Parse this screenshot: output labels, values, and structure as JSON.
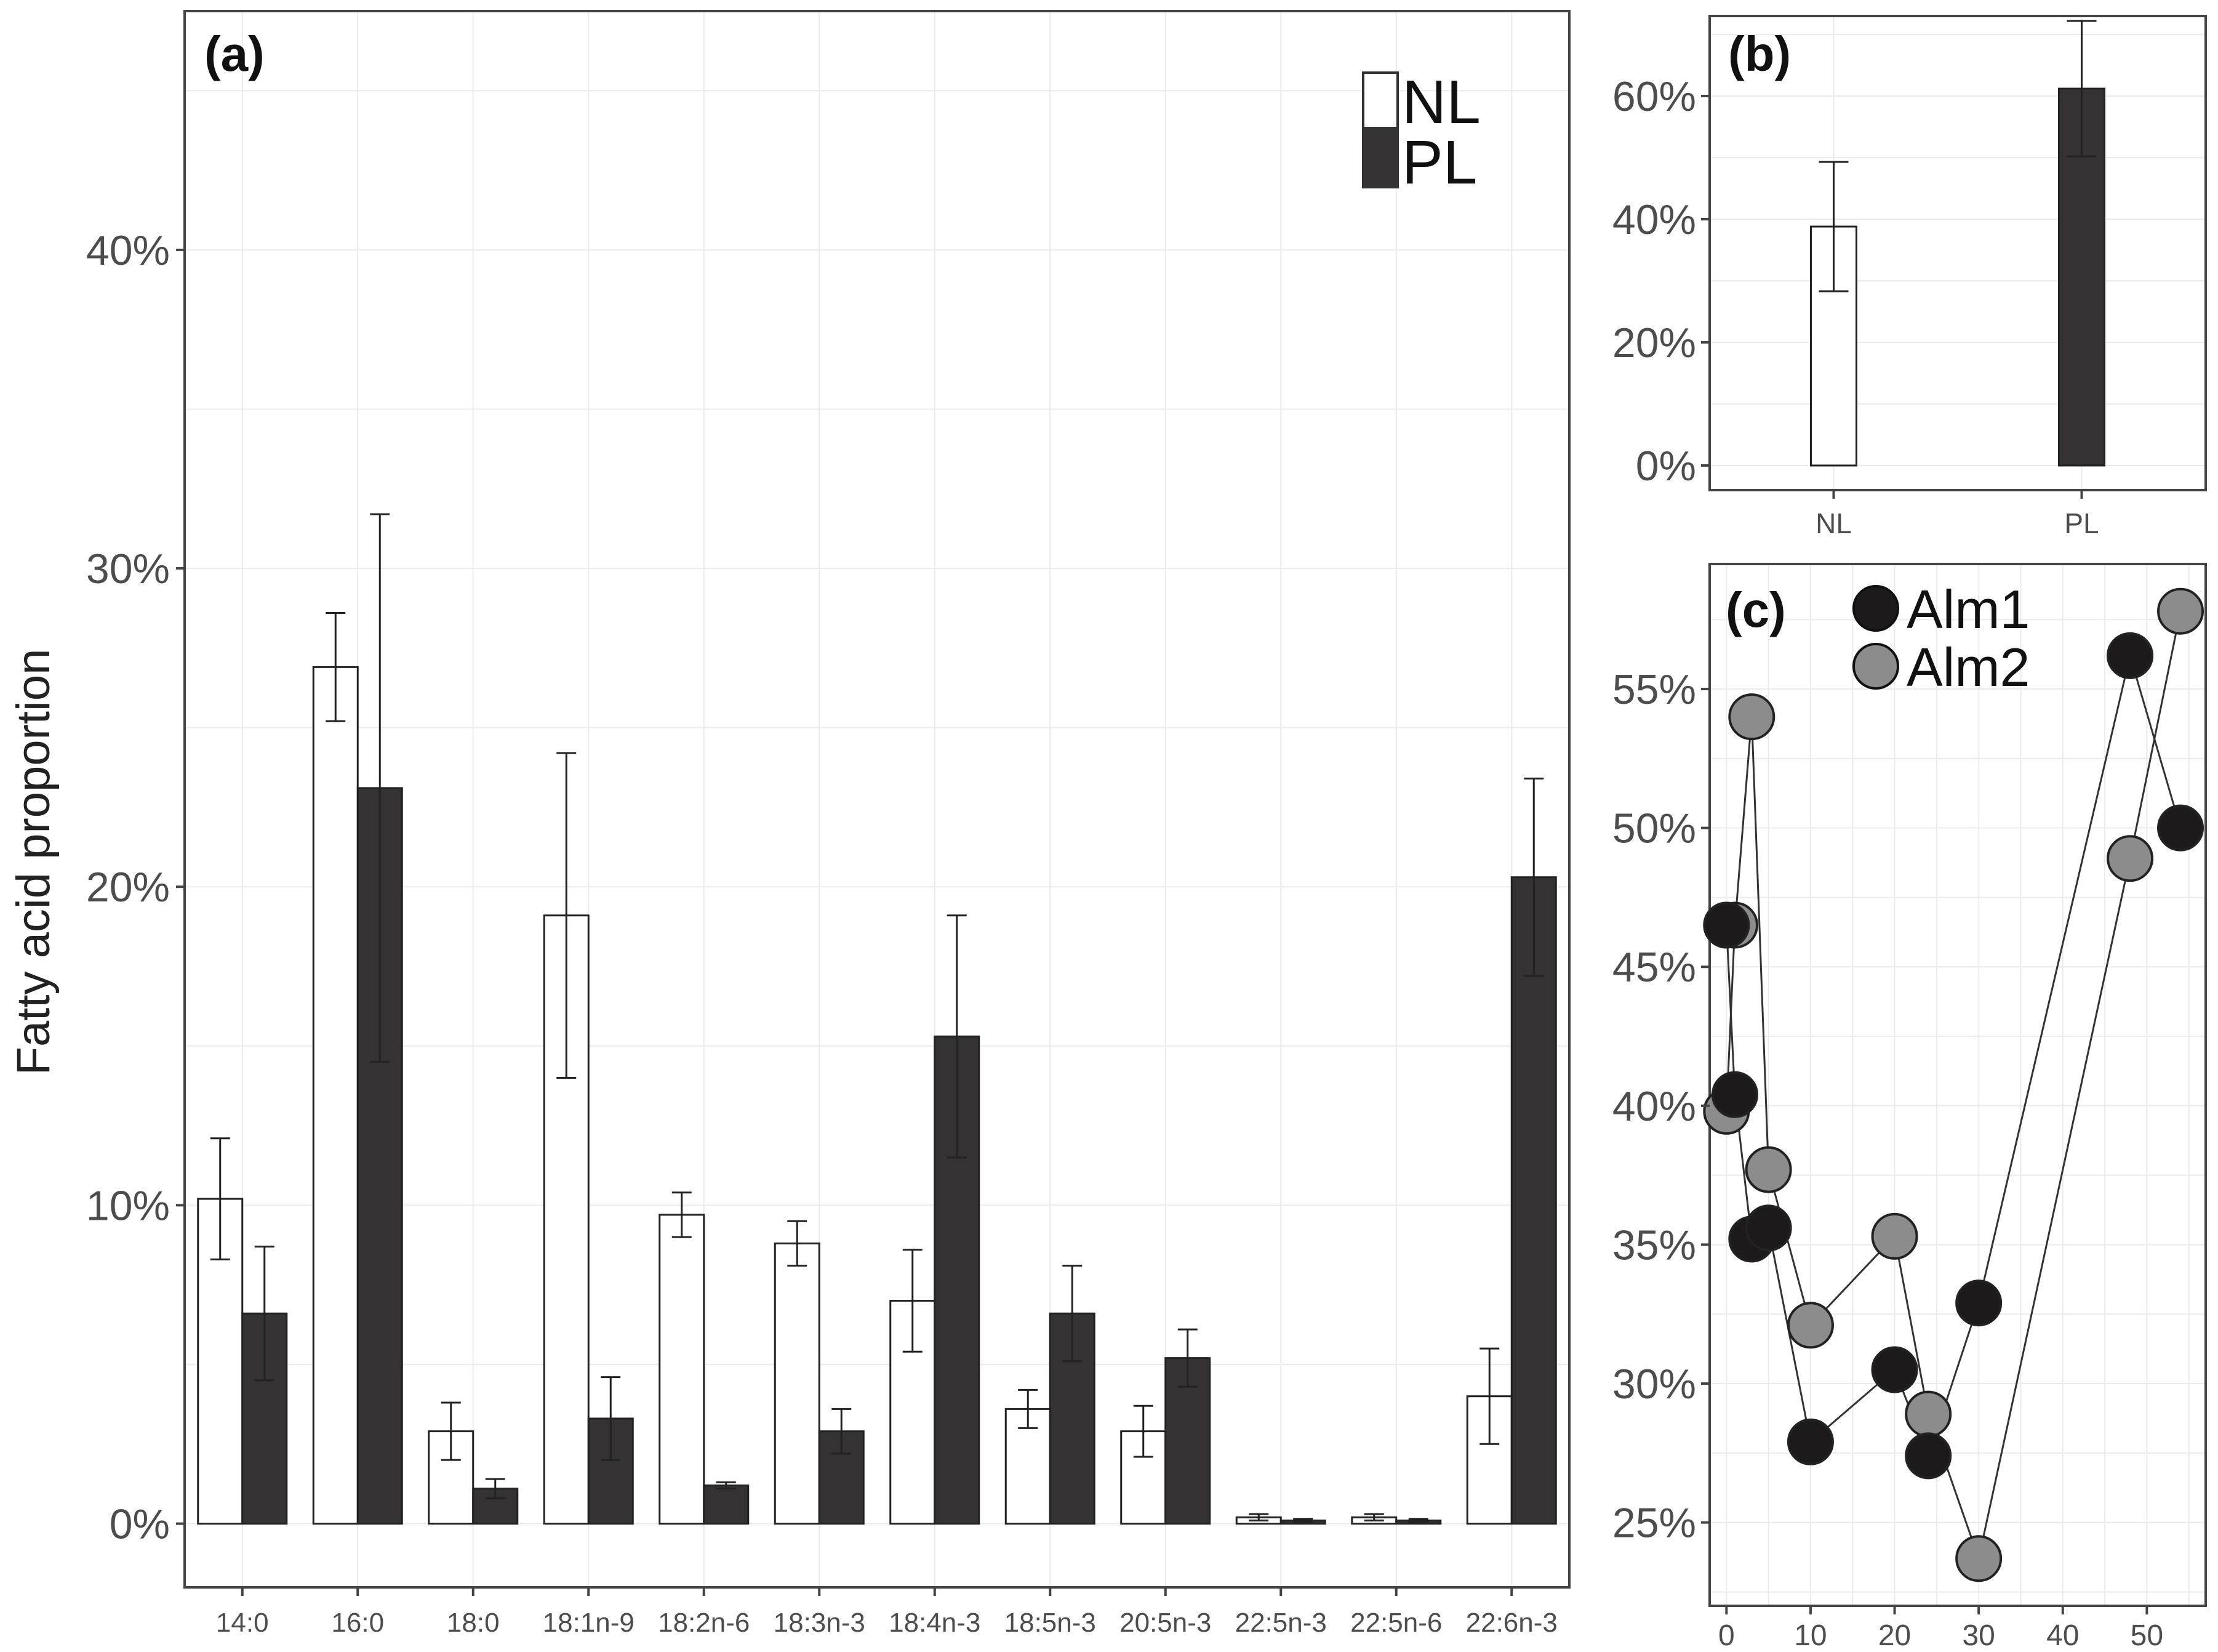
{
  "chart_data": [
    {
      "panel": "a",
      "type": "bar",
      "panel_label": "(a)",
      "ylabel": "Fatty acid proportion",
      "xlabel": "",
      "ylim": [
        -0.02,
        0.475
      ],
      "y_ticks": [
        0,
        0.1,
        0.2,
        0.3,
        0.4
      ],
      "y_tick_labels": [
        "0%",
        "10%",
        "20%",
        "30%",
        "40%"
      ],
      "categories": [
        "14:0",
        "16:0",
        "18:0",
        "18:1n-9",
        "18:2n-6",
        "18:3n-3",
        "18:4n-3",
        "18:5n-3",
        "20:5n-3",
        "22:5n-3",
        "22:5n-6",
        "22:6n-3"
      ],
      "series": [
        {
          "name": "NL",
          "color": "#ffffff",
          "values": [
            0.102,
            0.269,
            0.029,
            0.191,
            0.097,
            0.088,
            0.07,
            0.036,
            0.029,
            0.002,
            0.002,
            0.04
          ],
          "errors": [
            0.019,
            0.017,
            0.009,
            0.051,
            0.007,
            0.007,
            0.016,
            0.006,
            0.008,
            0.001,
            0.001,
            0.015
          ]
        },
        {
          "name": "PL",
          "color": "#353233",
          "values": [
            0.066,
            0.231,
            0.011,
            0.033,
            0.012,
            0.029,
            0.153,
            0.066,
            0.052,
            0.001,
            0.001,
            0.203
          ],
          "errors": [
            0.021,
            0.086,
            0.003,
            0.013,
            0.001,
            0.007,
            0.038,
            0.015,
            0.009,
            0.0005,
            0.0005,
            0.031
          ]
        }
      ],
      "legend": {
        "position": "top-right",
        "items": [
          "NL",
          "PL"
        ]
      },
      "grid": true
    },
    {
      "panel": "b",
      "type": "bar",
      "panel_label": "(b)",
      "ylim": [
        -0.04,
        0.73
      ],
      "y_ticks": [
        0,
        0.2,
        0.4,
        0.6
      ],
      "y_tick_labels": [
        "0%",
        "20%",
        "40%",
        "60%"
      ],
      "categories": [
        "NL",
        "PL"
      ],
      "values": [
        0.388,
        0.612
      ],
      "errors": [
        0.105,
        0.11
      ],
      "colors": [
        "#ffffff",
        "#353233"
      ],
      "grid": true
    },
    {
      "panel": "c",
      "type": "line",
      "panel_label": "(c)",
      "xlim": [
        -2,
        57
      ],
      "ylim": [
        0.22,
        0.595
      ],
      "x_ticks": [
        0,
        10,
        20,
        30,
        40,
        50
      ],
      "x_tick_labels": [
        "0",
        "10",
        "20",
        "30",
        "40",
        "50"
      ],
      "y_ticks": [
        0.25,
        0.3,
        0.35,
        0.4,
        0.45,
        0.5,
        0.55
      ],
      "y_tick_labels": [
        "25%",
        "30%",
        "35%",
        "40%",
        "45%",
        "50%",
        "55%"
      ],
      "series": [
        {
          "name": "Alm1",
          "color": "#1c1a1b",
          "x": [
            0,
            1,
            3,
            5,
            10,
            20,
            24,
            30,
            48,
            54
          ],
          "y": [
            0.465,
            0.404,
            0.352,
            0.356,
            0.279,
            0.305,
            0.274,
            0.329,
            0.562,
            0.5
          ]
        },
        {
          "name": "Alm2",
          "color": "#8c8c8c",
          "x": [
            0,
            1,
            3,
            5,
            10,
            20,
            24,
            30,
            48,
            54
          ],
          "y": [
            0.398,
            0.465,
            0.54,
            0.377,
            0.321,
            0.353,
            0.289,
            0.237,
            0.489,
            0.578
          ]
        }
      ],
      "legend": {
        "position": "top-left",
        "items": [
          "Alm1",
          "Alm2"
        ]
      },
      "grid": true
    }
  ]
}
